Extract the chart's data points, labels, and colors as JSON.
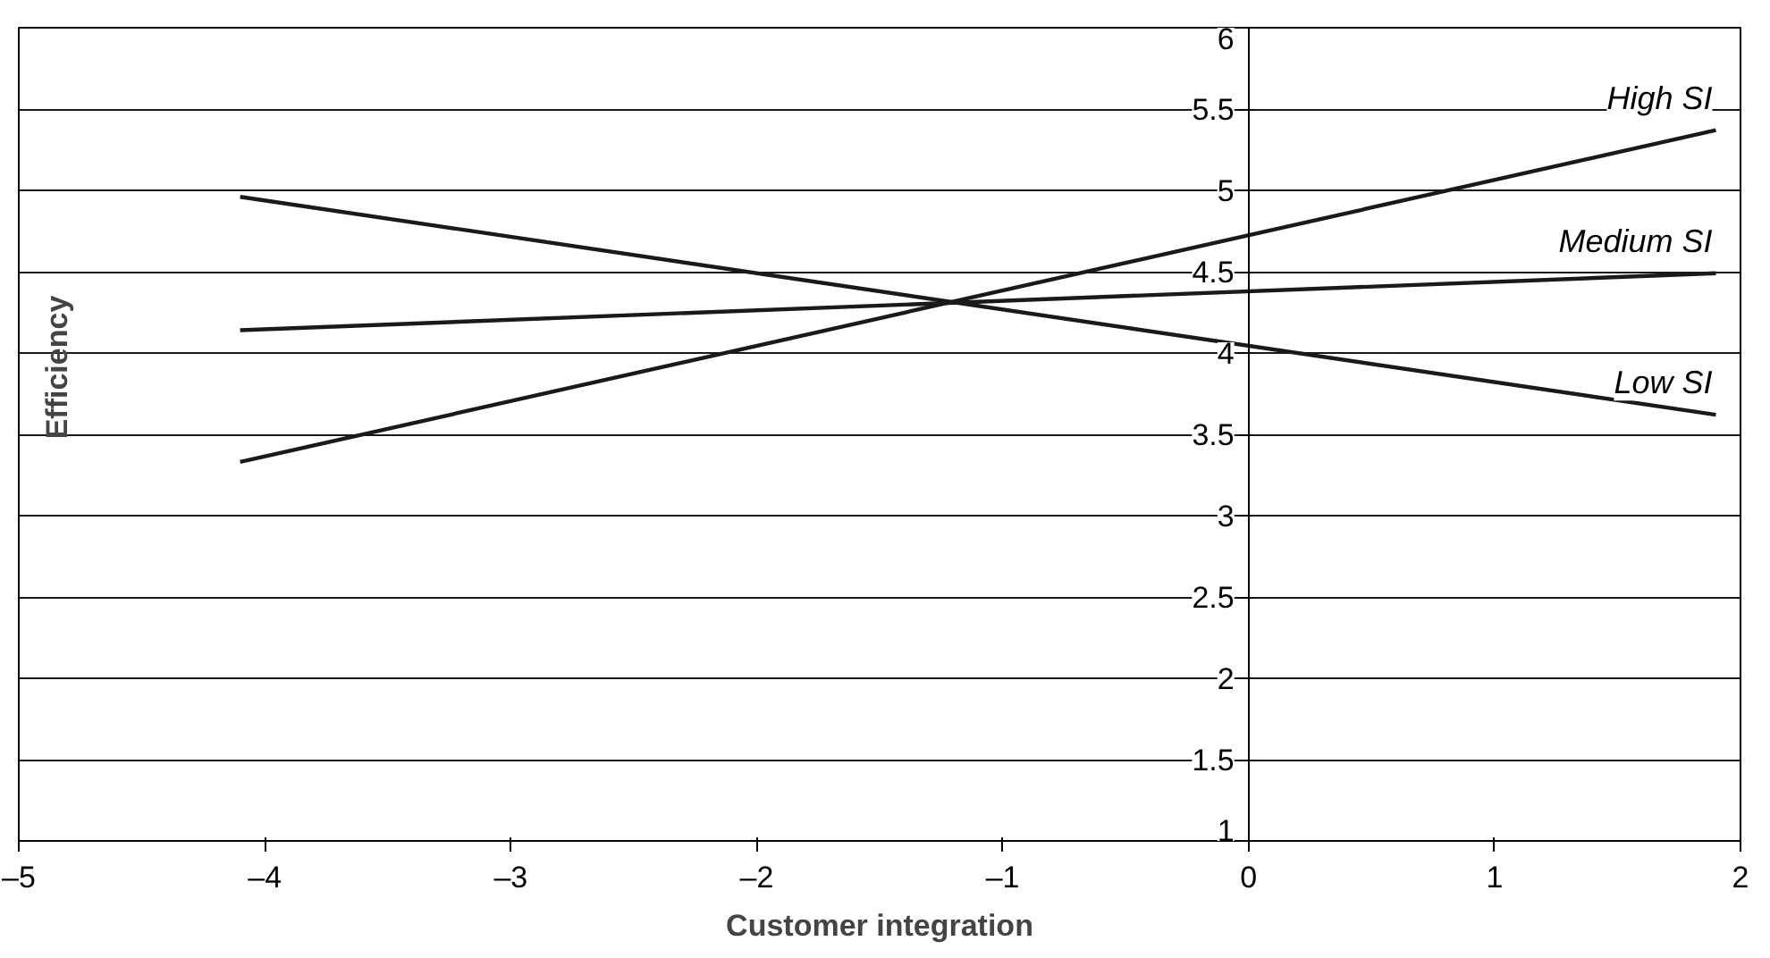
{
  "chart_data": {
    "type": "line",
    "xlabel": "Customer integration",
    "ylabel": "Efficiency",
    "xlim": [
      -5,
      2
    ],
    "ylim": [
      1,
      6
    ],
    "xticks": [
      {
        "value": -5,
        "label": "–5"
      },
      {
        "value": -4,
        "label": "–4"
      },
      {
        "value": -3,
        "label": "–3"
      },
      {
        "value": -2,
        "label": "–2"
      },
      {
        "value": -1,
        "label": "–1"
      },
      0,
      1,
      2
    ],
    "yticks": [
      1,
      1.5,
      2,
      2.5,
      3,
      3.5,
      4,
      4.5,
      5,
      5.5,
      6
    ],
    "grid": "y",
    "legend": false,
    "marker": "none",
    "line_style": "solid",
    "x": [
      -4.1,
      1.9
    ],
    "series": [
      {
        "name": "High SI",
        "color": "#1a1a1a",
        "values": [
          3.33,
          5.37
        ]
      },
      {
        "name": "Medium SI",
        "color": "#1a1a1a",
        "values": [
          4.14,
          4.49
        ]
      },
      {
        "name": "Low SI",
        "color": "#1a1a1a",
        "values": [
          4.96,
          3.62
        ]
      }
    ]
  }
}
